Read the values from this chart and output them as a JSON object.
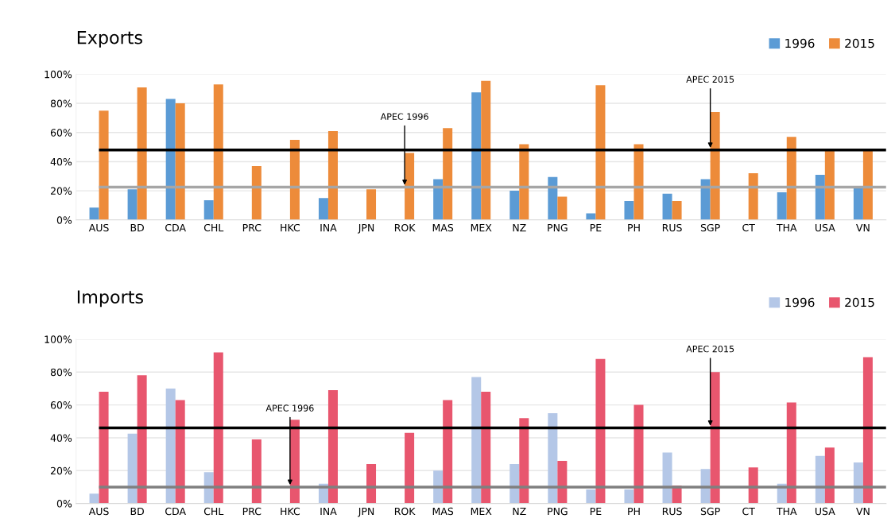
{
  "chart_data": [
    {
      "type": "bar",
      "title": "Exports",
      "categories": [
        "AUS",
        "BD",
        "CDA",
        "CHL",
        "PRC",
        "HKC",
        "INA",
        "JPN",
        "ROK",
        "MAS",
        "MEX",
        "NZ",
        "PNG",
        "PE",
        "PH",
        "RUS",
        "SGP",
        "CT",
        "THA",
        "USA",
        "VN"
      ],
      "series": [
        {
          "name": "1996",
          "color": "#5b9bd5",
          "values": [
            8.5,
            21,
            83,
            13.5,
            null,
            null,
            15,
            null,
            null,
            28,
            87.5,
            20,
            29.5,
            4.5,
            13,
            18,
            28,
            null,
            19,
            31,
            23
          ]
        },
        {
          "name": "2015",
          "color": "#ed8b3a",
          "values": [
            75,
            91,
            80,
            93,
            37,
            55,
            61,
            21,
            46,
            63,
            95.5,
            52,
            16,
            92.5,
            52,
            13,
            74,
            32,
            57,
            48,
            48
          ]
        }
      ],
      "ylim": [
        0,
        100
      ],
      "yticks": [
        {
          "value": 0,
          "label": "0%"
        },
        {
          "value": 20,
          "label": "20%"
        },
        {
          "value": 40,
          "label": "40%"
        },
        {
          "value": 60,
          "label": "60%"
        },
        {
          "value": 80,
          "label": "80%"
        },
        {
          "value": 100,
          "label": "100%"
        }
      ],
      "ref_lines": [
        {
          "axis": "y",
          "value": 48,
          "color": "#000000"
        },
        {
          "axis": "y",
          "value": 22.5,
          "color": "#a6a6a6"
        }
      ],
      "annotations": [
        {
          "text": "APEC 1996",
          "x": "ROK",
          "y": 22.5
        },
        {
          "text": "APEC 2015",
          "x": "SGP",
          "y": 48
        }
      ],
      "grid": "y",
      "legend": "top right"
    },
    {
      "type": "bar",
      "title": "Imports",
      "categories": [
        "AUS",
        "BD",
        "CDA",
        "CHL",
        "PRC",
        "HKC",
        "INA",
        "JPN",
        "ROK",
        "MAS",
        "MEX",
        "NZ",
        "PNG",
        "PE",
        "PH",
        "RUS",
        "SGP",
        "CT",
        "THA",
        "USA",
        "VN"
      ],
      "series": [
        {
          "name": "1996",
          "color": "#b4c7e7",
          "values": [
            6,
            42.5,
            70,
            19,
            null,
            null,
            12,
            null,
            null,
            20,
            77,
            24,
            55,
            8.5,
            8.5,
            31,
            21,
            null,
            12,
            29,
            25
          ]
        },
        {
          "name": "2015",
          "color": "#e8566e",
          "values": [
            68,
            78,
            63,
            92,
            39,
            51,
            69,
            24,
            43,
            63,
            68,
            52,
            26,
            88,
            60,
            11,
            80,
            22,
            61.5,
            34,
            89
          ]
        }
      ],
      "ylim": [
        0,
        100
      ],
      "yticks": [
        {
          "value": 0,
          "label": "0%"
        },
        {
          "value": 20,
          "label": "20%"
        },
        {
          "value": 40,
          "label": "40%"
        },
        {
          "value": 60,
          "label": "60%"
        },
        {
          "value": 80,
          "label": "80%"
        },
        {
          "value": 100,
          "label": "100%"
        }
      ],
      "ref_lines": [
        {
          "axis": "y",
          "value": 46,
          "color": "#000000"
        },
        {
          "axis": "y",
          "value": 10,
          "color": "#808080"
        }
      ],
      "annotations": [
        {
          "text": "APEC 1996",
          "x": "HKC",
          "y": 10
        },
        {
          "text": "APEC 2015",
          "x": "SGP",
          "y": 46
        }
      ],
      "grid": "y",
      "legend": "top right"
    }
  ]
}
